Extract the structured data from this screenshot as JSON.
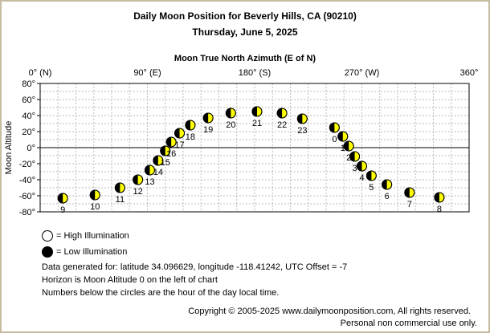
{
  "page": {
    "title": "Daily Moon Position for Beverly Hills, CA (90210)",
    "date": "Thursday, June 5, 2025",
    "axis_title": "Moon True North Azimuth (E of N)",
    "legend_high": "= High Illumination",
    "legend_low": "= Low Illumination",
    "info_line1": "Data generated for: latitude 34.096629, longitude -118.41242, UTC Offset = -7",
    "info_line2": "Horizon is Moon Altitude 0 on the left of chart",
    "info_line3": "Numbers below the circles are the hour of the day local time.",
    "copyright": "Copyright © 2005-2025 www.dailymoonposition.com, All rights reserved.",
    "personal_use": "Personal non commercial use only."
  },
  "colors": {
    "high": "#ffff00",
    "low": "#000000",
    "frame": "#c8bca0",
    "grid": "#bbbbbb"
  },
  "chart_data": {
    "type": "scatter",
    "title": "Daily Moon Position for Beverly Hills, CA (90210)",
    "subtitle": "Thursday, June 5, 2025",
    "xlabel": "Moon True North Azimuth (E of N)",
    "ylabel": "Moon Altitude",
    "xlim": [
      0,
      360
    ],
    "ylim": [
      -80,
      80
    ],
    "x_ticks": [
      {
        "value": 0,
        "label": "0° (N)"
      },
      {
        "value": 90,
        "label": "90° (E)"
      },
      {
        "value": 180,
        "label": "180° (S)"
      },
      {
        "value": 270,
        "label": "270° (W)"
      },
      {
        "value": 360,
        "label": "360°"
      }
    ],
    "y_ticks": [
      {
        "value": 80,
        "label": "80°"
      },
      {
        "value": 60,
        "label": "60°"
      },
      {
        "value": 40,
        "label": "40°"
      },
      {
        "value": 20,
        "label": "20°"
      },
      {
        "value": 0,
        "label": "0°"
      },
      {
        "value": -20,
        "label": "-20°"
      },
      {
        "value": -40,
        "label": "-40°"
      },
      {
        "value": -60,
        "label": "-60°"
      },
      {
        "value": -80,
        "label": "-80°"
      }
    ],
    "grid": true,
    "points": [
      {
        "hour": "0",
        "az": 247,
        "alt": 25
      },
      {
        "hour": "1",
        "az": 254,
        "alt": 14
      },
      {
        "hour": "2",
        "az": 259,
        "alt": 2
      },
      {
        "hour": "3",
        "az": 264,
        "alt": -11
      },
      {
        "hour": "4",
        "az": 270,
        "alt": -23
      },
      {
        "hour": "5",
        "az": 278,
        "alt": -35
      },
      {
        "hour": "6",
        "az": 291,
        "alt": -46
      },
      {
        "hour": "7",
        "az": 310,
        "alt": -56
      },
      {
        "hour": "8",
        "az": 335,
        "alt": -62
      },
      {
        "hour": "9",
        "az": 19,
        "alt": -63
      },
      {
        "hour": "10",
        "az": 46,
        "alt": -59
      },
      {
        "hour": "11",
        "az": 67,
        "alt": -50
      },
      {
        "hour": "12",
        "az": 82,
        "alt": -40
      },
      {
        "hour": "13",
        "az": 92,
        "alt": -28
      },
      {
        "hour": "14",
        "az": 99,
        "alt": -16
      },
      {
        "hour": "15",
        "az": 105,
        "alt": -4
      },
      {
        "hour": "16",
        "az": 110,
        "alt": 7
      },
      {
        "hour": "17",
        "az": 117,
        "alt": 18
      },
      {
        "hour": "18",
        "az": 126,
        "alt": 28
      },
      {
        "hour": "19",
        "az": 141,
        "alt": 37
      },
      {
        "hour": "20",
        "az": 160,
        "alt": 43
      },
      {
        "hour": "21",
        "az": 182,
        "alt": 45
      },
      {
        "hour": "22",
        "az": 203,
        "alt": 43
      },
      {
        "hour": "23",
        "az": 220,
        "alt": 36
      }
    ]
  }
}
